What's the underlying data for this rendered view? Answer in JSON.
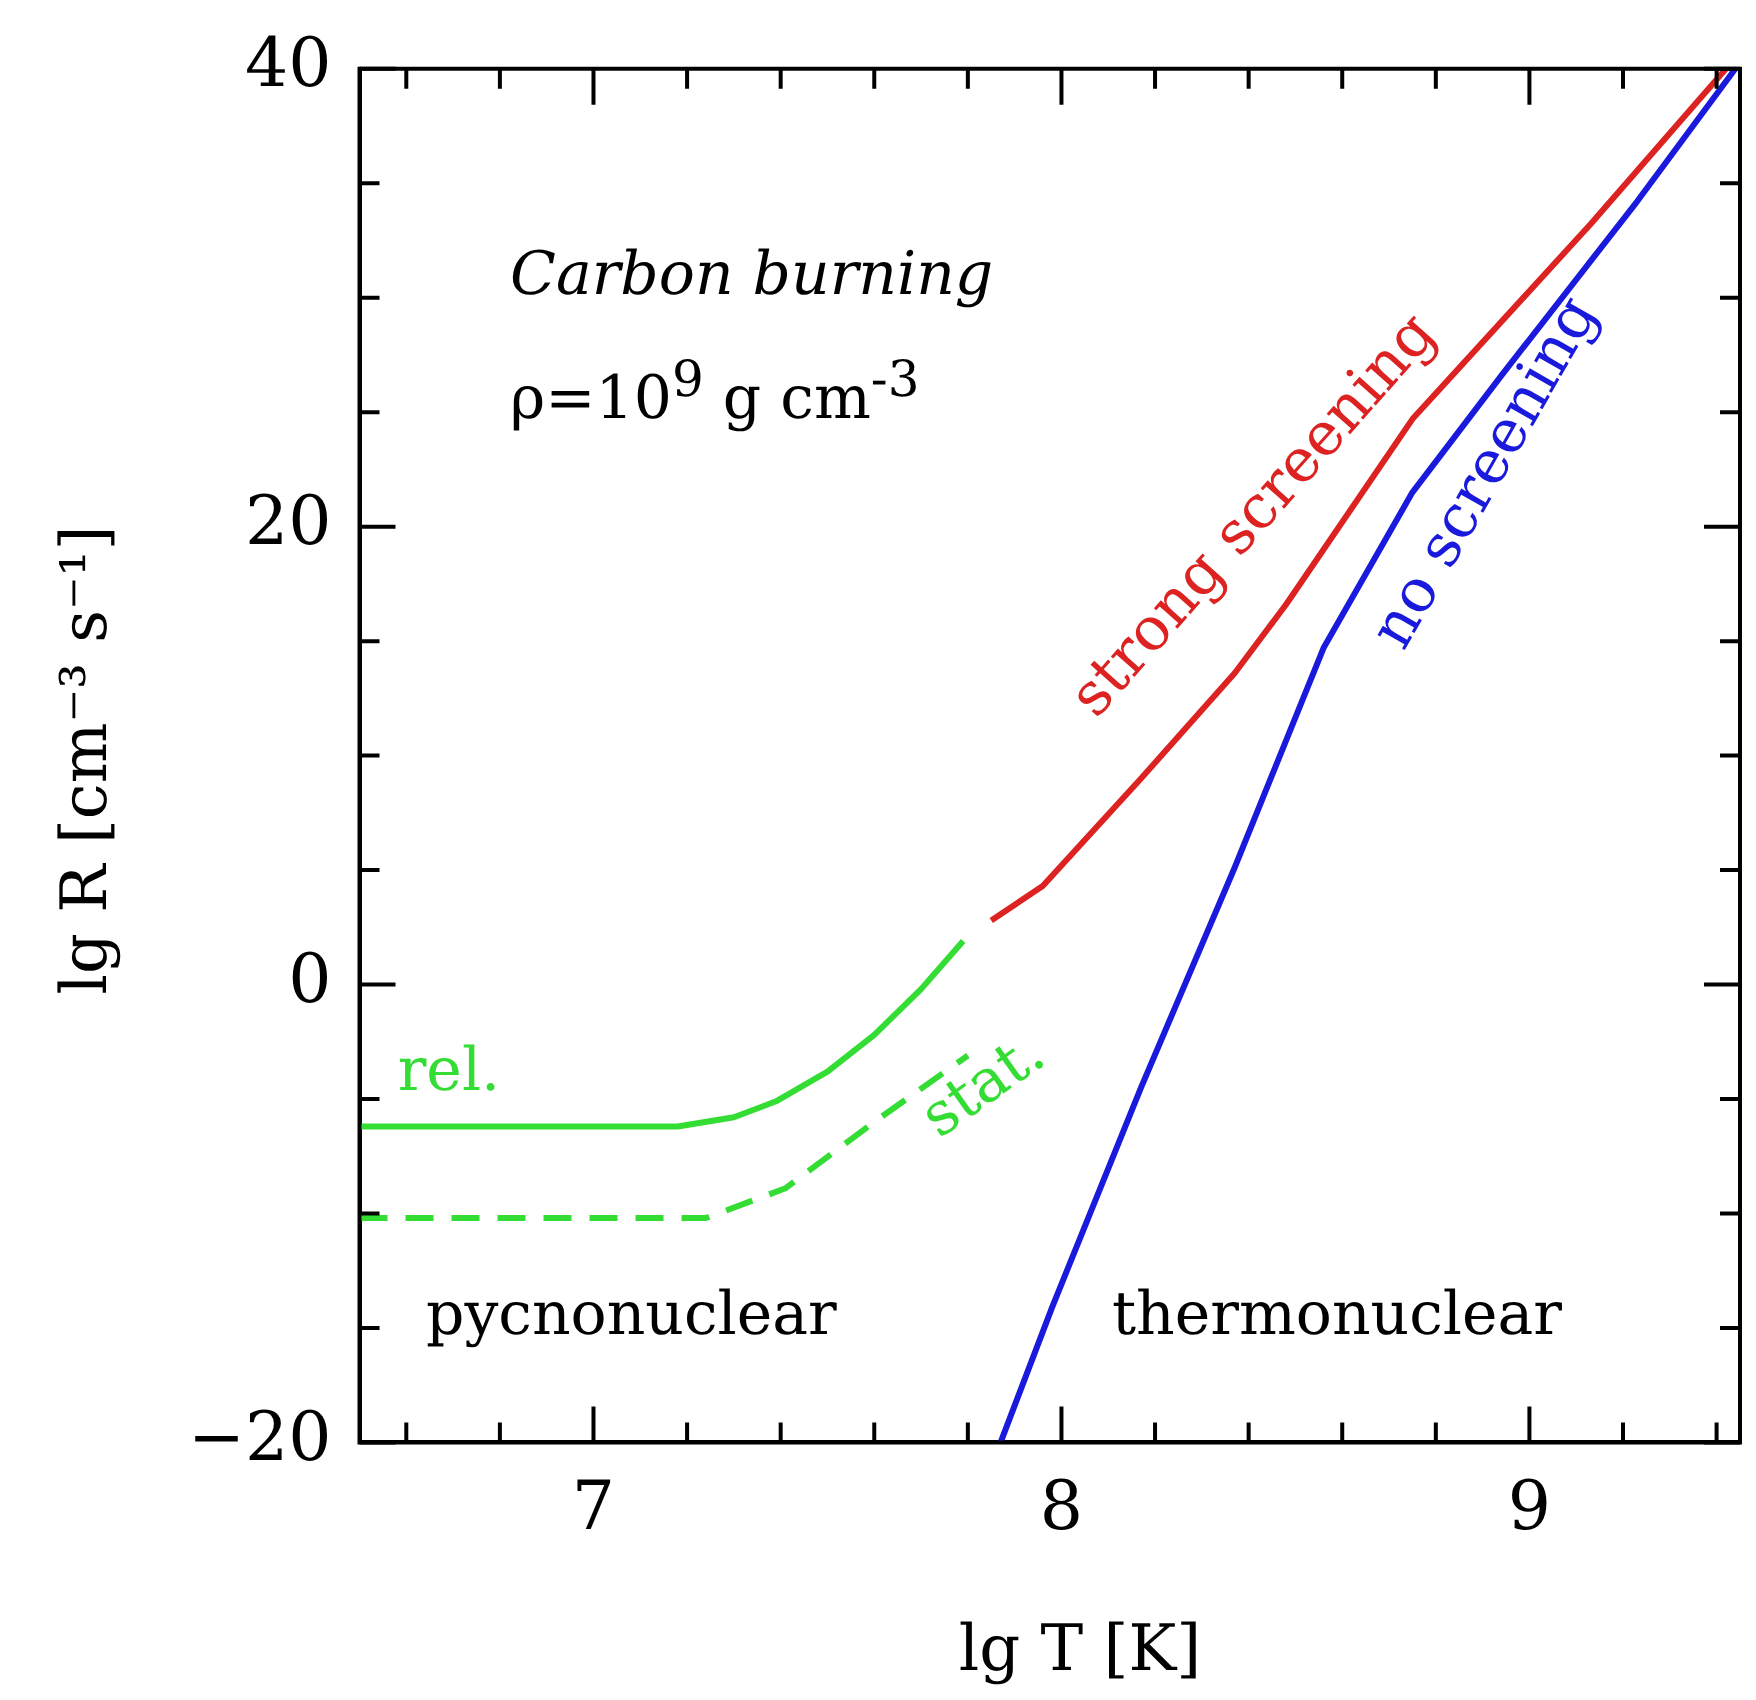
{
  "chart_data": {
    "type": "line",
    "xlabel": "lg T [K]",
    "ylabel": "lg R [cm⁻³ s⁻¹]",
    "xlim": [
      6.5,
      9.45
    ],
    "ylim": [
      -20,
      40
    ],
    "xticks": [
      {
        "value": 6.6,
        "label": null
      },
      {
        "value": 6.8,
        "label": null
      },
      7,
      {
        "value": 7.2,
        "label": null
      },
      {
        "value": 7.4,
        "label": null
      },
      {
        "value": 7.6,
        "label": null
      },
      {
        "value": 7.8,
        "label": null
      },
      8,
      {
        "value": 8.2,
        "label": null
      },
      {
        "value": 8.4,
        "label": null
      },
      {
        "value": 8.6,
        "label": null
      },
      {
        "value": 8.8,
        "label": null
      },
      9,
      {
        "value": 9.2,
        "label": null
      },
      {
        "value": 9.4,
        "label": null
      }
    ],
    "yticks": [
      -20,
      {
        "value": -15,
        "label": null
      },
      {
        "value": -10,
        "label": null
      },
      {
        "value": -5,
        "label": null
      },
      0,
      {
        "value": 5,
        "label": null
      },
      {
        "value": 10,
        "label": null
      },
      {
        "value": 15,
        "label": null
      },
      20,
      {
        "value": 25,
        "label": null
      },
      {
        "value": 30,
        "label": null
      },
      {
        "value": 35,
        "label": null
      },
      40
    ],
    "grid": false,
    "legend": false,
    "marker": "none",
    "series": [
      {
        "name": "rel.",
        "color": "#33dd33",
        "line_style": "solid",
        "x": [
          6.5,
          7.18,
          7.3,
          7.39,
          7.5,
          7.6,
          7.7,
          7.79
        ],
        "values": [
          -6.2,
          -6.2,
          -5.8,
          -5.1,
          -3.8,
          -2.2,
          -0.2,
          1.9
        ]
      },
      {
        "name": "stat.",
        "color": "#33dd33",
        "line_style": "dashed",
        "x": [
          6.5,
          7.24,
          7.41,
          7.6,
          7.8
        ],
        "values": [
          -10.2,
          -10.2,
          -8.9,
          -6.0,
          -3.1
        ]
      },
      {
        "name": "strong screening",
        "color": "#dd2222",
        "line_style": "solid",
        "x": [
          7.85,
          7.96,
          8.17,
          8.37,
          8.48,
          8.75,
          9.13,
          9.42
        ],
        "values": [
          2.8,
          4.3,
          9.0,
          13.6,
          16.6,
          24.7,
          33.2,
          40
        ]
      },
      {
        "name": "no screening",
        "color": "#1a1add",
        "line_style": "solid",
        "x": [
          7.87,
          7.98,
          8.17,
          8.37,
          8.56,
          8.75,
          8.94,
          9.23,
          9.44
        ],
        "values": [
          -20,
          -14.1,
          -4.5,
          5.1,
          14.7,
          21.5,
          26.6,
          34.2,
          40
        ]
      }
    ],
    "annotations": [
      "Carbon burning",
      "ρ=10$^{9}$ g cm$^{-3}$",
      "pycnonuclear",
      "thermonuclear"
    ]
  }
}
